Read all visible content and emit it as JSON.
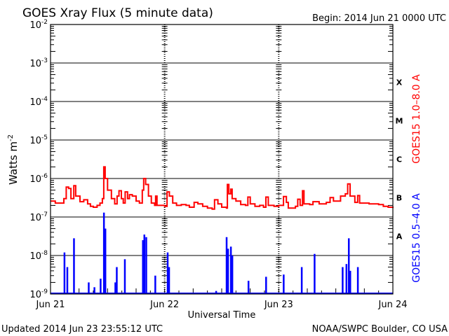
{
  "chart_data": {
    "type": "line",
    "title": "GOES Xray Flux (5 minute data)",
    "begin": "Begin:  2014 Jun 21 0000 UTC",
    "xlabel": "Universal Time",
    "ylabel": "Watts m",
    "ylabel_sup": "-2",
    "x_unit": "hours since 2014 Jun 21 0000 UTC",
    "xlim": [
      0,
      72
    ],
    "ylim": [
      1e-09,
      0.01
    ],
    "yscale": "log",
    "x_ticks": [
      {
        "h": 0,
        "label": "Jun 21"
      },
      {
        "h": 24,
        "label": "Jun 22"
      },
      {
        "h": 48,
        "label": "Jun 23"
      },
      {
        "h": 72,
        "label": "Jun 24"
      }
    ],
    "y_ticks": [
      {
        "exp": -2,
        "label": "10",
        "sup": "-2"
      },
      {
        "exp": -3,
        "label": "10",
        "sup": "-3"
      },
      {
        "exp": -4,
        "label": "10",
        "sup": "-4"
      },
      {
        "exp": -5,
        "label": "10",
        "sup": "-5"
      },
      {
        "exp": -6,
        "label": "10",
        "sup": "-6"
      },
      {
        "exp": -7,
        "label": "10",
        "sup": "-7"
      },
      {
        "exp": -8,
        "label": "10",
        "sup": "-8"
      },
      {
        "exp": -9,
        "label": "10",
        "sup": "-9"
      }
    ],
    "flare_classes": [
      {
        "label": "X",
        "exp": -3.5
      },
      {
        "label": "M",
        "exp": -4.5
      },
      {
        "label": "C",
        "exp": -5.5
      },
      {
        "label": "B",
        "exp": -6.5
      },
      {
        "label": "A",
        "exp": -7.5
      }
    ],
    "series": [
      {
        "name": "GOES15 1.0–8.0 A",
        "color": "#ff0000",
        "points": [
          [
            0,
            2.6e-07
          ],
          [
            1,
            2.3e-07
          ],
          [
            2,
            2.3e-07
          ],
          [
            2.8,
            3e-07
          ],
          [
            3.3,
            6e-07
          ],
          [
            3.8,
            5.5e-07
          ],
          [
            4.3,
            3e-07
          ],
          [
            4.9,
            6.5e-07
          ],
          [
            5.3,
            3.5e-07
          ],
          [
            6.2,
            2.5e-07
          ],
          [
            7,
            2.8e-07
          ],
          [
            7.8,
            2.2e-07
          ],
          [
            8.4,
            1.9e-07
          ],
          [
            9,
            1.8e-07
          ],
          [
            9.8,
            2e-07
          ],
          [
            10.4,
            2.3e-07
          ],
          [
            10.9,
            3e-07
          ],
          [
            11.2,
            2e-06
          ],
          [
            11.5,
            1e-06
          ],
          [
            12,
            5e-07
          ],
          [
            12.8,
            3e-07
          ],
          [
            13.5,
            2.2e-07
          ],
          [
            14,
            3.5e-07
          ],
          [
            14.4,
            4.8e-07
          ],
          [
            14.9,
            3e-07
          ],
          [
            15.3,
            2.3e-07
          ],
          [
            15.7,
            4.5e-07
          ],
          [
            16.2,
            3e-07
          ],
          [
            16.6,
            3.8e-07
          ],
          [
            17.2,
            3.5e-07
          ],
          [
            18,
            2.6e-07
          ],
          [
            18.7,
            2.3e-07
          ],
          [
            19.3,
            5e-07
          ],
          [
            19.6,
            1e-06
          ],
          [
            20,
            7e-07
          ],
          [
            20.6,
            3.5e-07
          ],
          [
            21.2,
            2.3e-07
          ],
          [
            21.9,
            2e-07
          ],
          [
            22.1,
            3.5e-07
          ],
          [
            22.4,
            2e-07
          ],
          [
            24,
            1.9e-07
          ],
          [
            24.5,
            4.5e-07
          ],
          [
            25,
            3.5e-07
          ],
          [
            25.7,
            2.3e-07
          ],
          [
            26.5,
            2e-07
          ],
          [
            27.5,
            2.1e-07
          ],
          [
            28.5,
            2e-07
          ],
          [
            29.2,
            1.8e-07
          ],
          [
            30.2,
            2.4e-07
          ],
          [
            31,
            2.2e-07
          ],
          [
            32,
            1.9e-07
          ],
          [
            33,
            1.7e-07
          ],
          [
            34,
            1.6e-07
          ],
          [
            34.5,
            2.8e-07
          ],
          [
            35.2,
            2.2e-07
          ],
          [
            36,
            1.8e-07
          ],
          [
            37,
            1.7e-07
          ],
          [
            37.2,
            7e-07
          ],
          [
            37.5,
            4e-07
          ],
          [
            37.9,
            5.3e-07
          ],
          [
            38.2,
            3e-07
          ],
          [
            39,
            2.6e-07
          ],
          [
            40,
            2.1e-07
          ],
          [
            41,
            2e-07
          ],
          [
            41.5,
            3.3e-07
          ],
          [
            42,
            2.2e-07
          ],
          [
            43,
            1.9e-07
          ],
          [
            44,
            2e-07
          ],
          [
            44.8,
            1.8e-07
          ],
          [
            45.3,
            3.3e-07
          ],
          [
            45.8,
            2e-07
          ],
          [
            47,
            1.9e-07
          ],
          [
            48,
            2e-07
          ],
          [
            49,
            3.4e-07
          ],
          [
            49.6,
            2.4e-07
          ],
          [
            50,
            1.7e-07
          ],
          [
            51.5,
            1.9e-07
          ],
          [
            52,
            2.9e-07
          ],
          [
            52.5,
            2e-07
          ],
          [
            53,
            4.8e-07
          ],
          [
            53.3,
            2.2e-07
          ],
          [
            54.5,
            2.1e-07
          ],
          [
            55.2,
            2.5e-07
          ],
          [
            56.5,
            2.2e-07
          ],
          [
            58,
            2.4e-07
          ],
          [
            58.8,
            3.2e-07
          ],
          [
            59.5,
            2.6e-07
          ],
          [
            61,
            3.5e-07
          ],
          [
            62,
            4e-07
          ],
          [
            62.5,
            7.2e-07
          ],
          [
            63,
            3.5e-07
          ],
          [
            64,
            2.4e-07
          ],
          [
            64.6,
            3.6e-07
          ],
          [
            65,
            2.3e-07
          ],
          [
            67,
            2.2e-07
          ],
          [
            69,
            2.1e-07
          ],
          [
            70,
            1.9e-07
          ],
          [
            71,
            1.8e-07
          ],
          [
            72,
            1.7e-07
          ]
        ]
      },
      {
        "name": "GOES15 0.5–4.0 A",
        "color": "#0000ff",
        "baseline": 1e-09,
        "spikes": [
          [
            2.9,
            1.2e-08
          ],
          [
            3.5,
            5e-09
          ],
          [
            4.9,
            2.8e-08
          ],
          [
            8,
            2e-09
          ],
          [
            9.2,
            1.5e-09
          ],
          [
            10.5,
            2.5e-09
          ],
          [
            11.2,
            1.3e-07
          ],
          [
            11.5,
            5e-08
          ],
          [
            13.6,
            2e-09
          ],
          [
            13.9,
            5e-09
          ],
          [
            15.6,
            8e-09
          ],
          [
            19.4,
            2.5e-08
          ],
          [
            19.7,
            3.5e-08
          ],
          [
            20.1,
            3e-08
          ],
          [
            22,
            3e-09
          ],
          [
            24.6,
            1.2e-08
          ],
          [
            24.9,
            5e-09
          ],
          [
            34.8,
            1.2e-09
          ],
          [
            37,
            3e-08
          ],
          [
            37.3,
            1.5e-08
          ],
          [
            37.9,
            1.7e-08
          ],
          [
            38.2,
            1e-08
          ],
          [
            41.6,
            2.2e-09
          ],
          [
            45.3,
            2.8e-09
          ],
          [
            49,
            3.2e-09
          ],
          [
            52.8,
            5e-09
          ],
          [
            55.5,
            1.1e-08
          ],
          [
            61.4,
            5e-09
          ],
          [
            62.2,
            6e-09
          ],
          [
            62.7,
            2.8e-08
          ],
          [
            63,
            4e-09
          ],
          [
            64.6,
            5e-09
          ]
        ]
      }
    ]
  },
  "footer": {
    "updated": "Updated 2014 Jun 23 23:55:12 UTC",
    "source": "NOAA/SWPC Boulder, CO USA"
  }
}
